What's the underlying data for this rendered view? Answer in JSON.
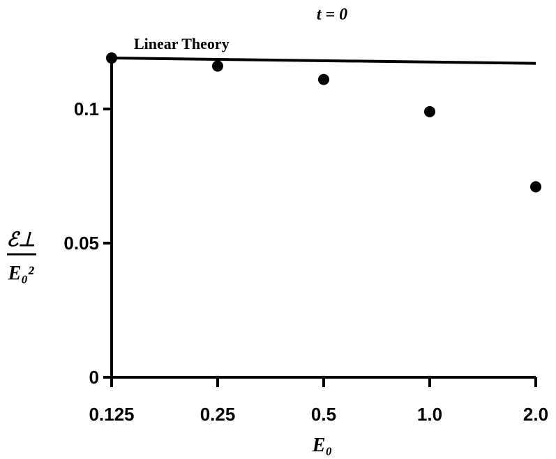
{
  "chart_data": {
    "type": "scatter",
    "title": "t = 0",
    "xlabel": "E₀",
    "ylabel": {
      "numerator": "ℰ⊥",
      "denominator": "E₀²"
    },
    "x_scale": "log2",
    "categories": [
      "0.125",
      "0.25",
      "0.5",
      "1.0",
      "2.0"
    ],
    "x": [
      0.125,
      0.25,
      0.5,
      1.0,
      2.0
    ],
    "y_ticks": [
      {
        "value": 0,
        "label": "0"
      },
      {
        "value": 0.05,
        "label": "0.05"
      },
      {
        "value": 0.1,
        "label": "0.1"
      }
    ],
    "ylim": [
      0,
      0.12
    ],
    "series": [
      {
        "kind": "points",
        "x": [
          0.125,
          0.25,
          0.5,
          1.0,
          2.0
        ],
        "y": [
          0.119,
          0.116,
          0.111,
          0.099,
          0.071
        ]
      },
      {
        "kind": "line",
        "name": "Linear Theory",
        "x": [
          0.125,
          2.0
        ],
        "y": [
          0.119,
          0.117
        ]
      }
    ],
    "annotations": [
      {
        "text": "Linear Theory",
        "x": 0.125,
        "y": 0.119
      }
    ],
    "grid": false,
    "legend": "none"
  }
}
